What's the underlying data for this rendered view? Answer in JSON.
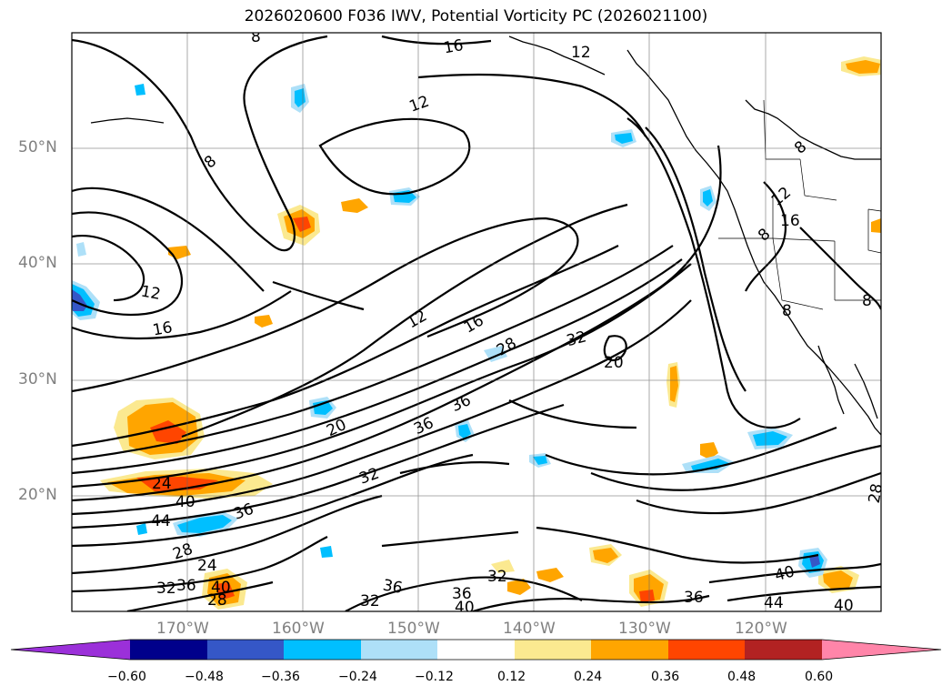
{
  "title": "2026020600 F036 IWV, Potential Vorticity PC (2026021100)",
  "lat_labels": [
    "50°N",
    "40°N",
    "30°N",
    "20°N"
  ],
  "lon_labels": [
    "170°W",
    "160°W",
    "150°W",
    "140°W",
    "130°W",
    "120°W"
  ],
  "contour_labels": [
    "8",
    "8",
    "16",
    "12",
    "12",
    "12",
    "16",
    "12",
    "16",
    "28",
    "32",
    "20",
    "36",
    "36",
    "20",
    "32",
    "24",
    "40",
    "44",
    "36",
    "28",
    "24",
    "32",
    "36",
    "28",
    "40",
    "36",
    "32",
    "36",
    "40",
    "32",
    "36",
    "40",
    "44",
    "40",
    "28",
    "8",
    "12",
    "8",
    "8",
    "16",
    "8"
  ],
  "colorbar": {
    "ticks": [
      "−0.60",
      "−0.48",
      "−0.36",
      "−0.24",
      "−0.12",
      "0.12",
      "0.24",
      "0.36",
      "0.48",
      "0.60"
    ],
    "colors": [
      "#9b30d9",
      "#00008b",
      "#3557c7",
      "#00bfff",
      "#aee0f8",
      "#ffffff",
      "#fbe990",
      "#ffa500",
      "#ff4500",
      "#b22222",
      "#ff85a9"
    ]
  },
  "icons": {
    "map": "contour-map",
    "colorbar": "colorbar"
  }
}
